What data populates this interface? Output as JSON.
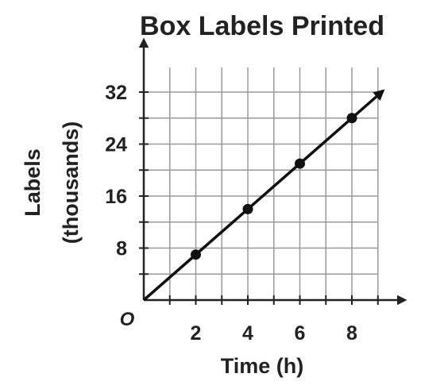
{
  "chart_data": {
    "type": "line",
    "title": "Box Labels Printed",
    "xlabel": "Time (h)",
    "ylabel_lines": [
      "Labels",
      "(thousands)"
    ],
    "origin_label": "O",
    "xlim": [
      0,
      9
    ],
    "ylim": [
      0,
      36
    ],
    "grid": true,
    "x_ticks": [
      {
        "value": 2,
        "label": "2"
      },
      {
        "value": 4,
        "label": "4"
      },
      {
        "value": 6,
        "label": "6"
      },
      {
        "value": 8,
        "label": "8"
      }
    ],
    "y_ticks": [
      {
        "value": 8,
        "label": "8"
      },
      {
        "value": 16,
        "label": "16"
      },
      {
        "value": 24,
        "label": "24"
      },
      {
        "value": 32,
        "label": "32"
      }
    ],
    "series": [
      {
        "points": [
          {
            "x": 2,
            "y": 7
          },
          {
            "x": 4,
            "y": 14
          },
          {
            "x": 6,
            "y": 21
          },
          {
            "x": 8,
            "y": 28
          }
        ],
        "line": {
          "from": [
            0,
            0
          ],
          "to": [
            9.2,
            32.2
          ]
        },
        "color": "#111111"
      }
    ]
  }
}
